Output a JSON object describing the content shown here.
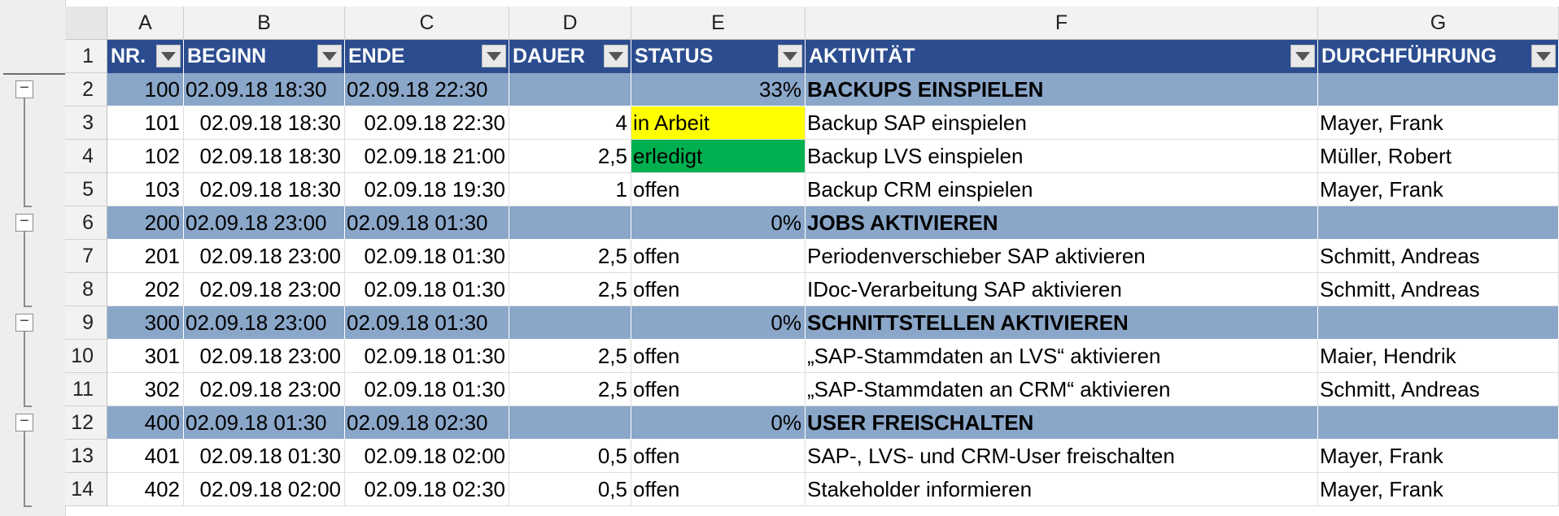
{
  "columns": [
    "A",
    "B",
    "C",
    "D",
    "E",
    "F",
    "G"
  ],
  "header_row": {
    "number": "1",
    "cells": [
      "NR.",
      "BEGINN",
      "ENDE",
      "DAUER",
      "STATUS",
      "AKTIVITÄT",
      "DURCHFÜHRUNG"
    ]
  },
  "rows": [
    {
      "num": "2",
      "type": "group",
      "nr": "100",
      "beginn": "02.09.18 18:30",
      "ende": "02.09.18 22:30",
      "dauer": "",
      "status": "33%",
      "aktivitaet": "BACKUPS EINSPIELEN",
      "durchfuehrung": ""
    },
    {
      "num": "3",
      "type": "data",
      "nr": "101",
      "beginn": "02.09.18 18:30",
      "ende": "02.09.18 22:30",
      "dauer": "4",
      "status": "in Arbeit",
      "status_color": "#ffff00",
      "aktivitaet": "Backup SAP einspielen",
      "durchfuehrung": "Mayer, Frank"
    },
    {
      "num": "4",
      "type": "data",
      "nr": "102",
      "beginn": "02.09.18 18:30",
      "ende": "02.09.18 21:00",
      "dauer": "2,5",
      "status": "erledigt",
      "status_color": "#00b050",
      "aktivitaet": "Backup LVS einspielen",
      "durchfuehrung": "Müller, Robert"
    },
    {
      "num": "5",
      "type": "data",
      "nr": "103",
      "beginn": "02.09.18 18:30",
      "ende": "02.09.18 19:30",
      "dauer": "1",
      "status": "offen",
      "aktivitaet": "Backup CRM einspielen",
      "durchfuehrung": "Mayer, Frank"
    },
    {
      "num": "6",
      "type": "group",
      "nr": "200",
      "beginn": "02.09.18 23:00",
      "ende": "02.09.18 01:30",
      "dauer": "",
      "status": "0%",
      "aktivitaet": "JOBS AKTIVIEREN",
      "durchfuehrung": ""
    },
    {
      "num": "7",
      "type": "data",
      "nr": "201",
      "beginn": "02.09.18 23:00",
      "ende": "02.09.18 01:30",
      "dauer": "2,5",
      "status": "offen",
      "aktivitaet": "Periodenverschieber SAP aktivieren",
      "durchfuehrung": "Schmitt, Andreas"
    },
    {
      "num": "8",
      "type": "data",
      "nr": "202",
      "beginn": "02.09.18 23:00",
      "ende": "02.09.18 01:30",
      "dauer": "2,5",
      "status": "offen",
      "aktivitaet": "IDoc-Verarbeitung SAP aktivieren",
      "durchfuehrung": "Schmitt, Andreas"
    },
    {
      "num": "9",
      "type": "group",
      "nr": "300",
      "beginn": "02.09.18 23:00",
      "ende": "02.09.18 01:30",
      "dauer": "",
      "status": "0%",
      "aktivitaet": "SCHNITTSTELLEN AKTIVIEREN",
      "durchfuehrung": ""
    },
    {
      "num": "10",
      "type": "data",
      "nr": "301",
      "beginn": "02.09.18 23:00",
      "ende": "02.09.18 01:30",
      "dauer": "2,5",
      "status": "offen",
      "aktivitaet": "„SAP-Stammdaten an LVS“ aktivieren",
      "durchfuehrung": "Maier, Hendrik"
    },
    {
      "num": "11",
      "type": "data",
      "nr": "302",
      "beginn": "02.09.18 23:00",
      "ende": "02.09.18 01:30",
      "dauer": "2,5",
      "status": "offen",
      "aktivitaet": "„SAP-Stammdaten an CRM“ aktivieren",
      "durchfuehrung": "Schmitt, Andreas"
    },
    {
      "num": "12",
      "type": "group",
      "nr": "400",
      "beginn": "02.09.18 01:30",
      "ende": "02.09.18 02:30",
      "dauer": "",
      "status": "0%",
      "aktivitaet": "USER FREISCHALTEN",
      "durchfuehrung": ""
    },
    {
      "num": "13",
      "type": "data",
      "nr": "401",
      "beginn": "02.09.18 01:30",
      "ende": "02.09.18 02:00",
      "dauer": "0,5",
      "status": "offen",
      "aktivitaet": "SAP-, LVS- und CRM-User freischalten",
      "durchfuehrung": "Mayer, Frank"
    },
    {
      "num": "14",
      "type": "data",
      "nr": "402",
      "beginn": "02.09.18 02:00",
      "ende": "02.09.18 02:30",
      "dauer": "0,5",
      "status": "offen",
      "aktivitaet": "Stakeholder informieren",
      "durchfuehrung": "Mayer, Frank"
    }
  ],
  "outline": {
    "collapse_symbol": "−",
    "icons": {
      "collapse": "collapse-group-icon",
      "filter": "filter-dropdown-icon"
    }
  },
  "colors": {
    "header_bg": "#2b4d8f",
    "group_bg": "#8aa6c8",
    "in_arbeit": "#ffff00",
    "erledigt": "#00b050"
  }
}
